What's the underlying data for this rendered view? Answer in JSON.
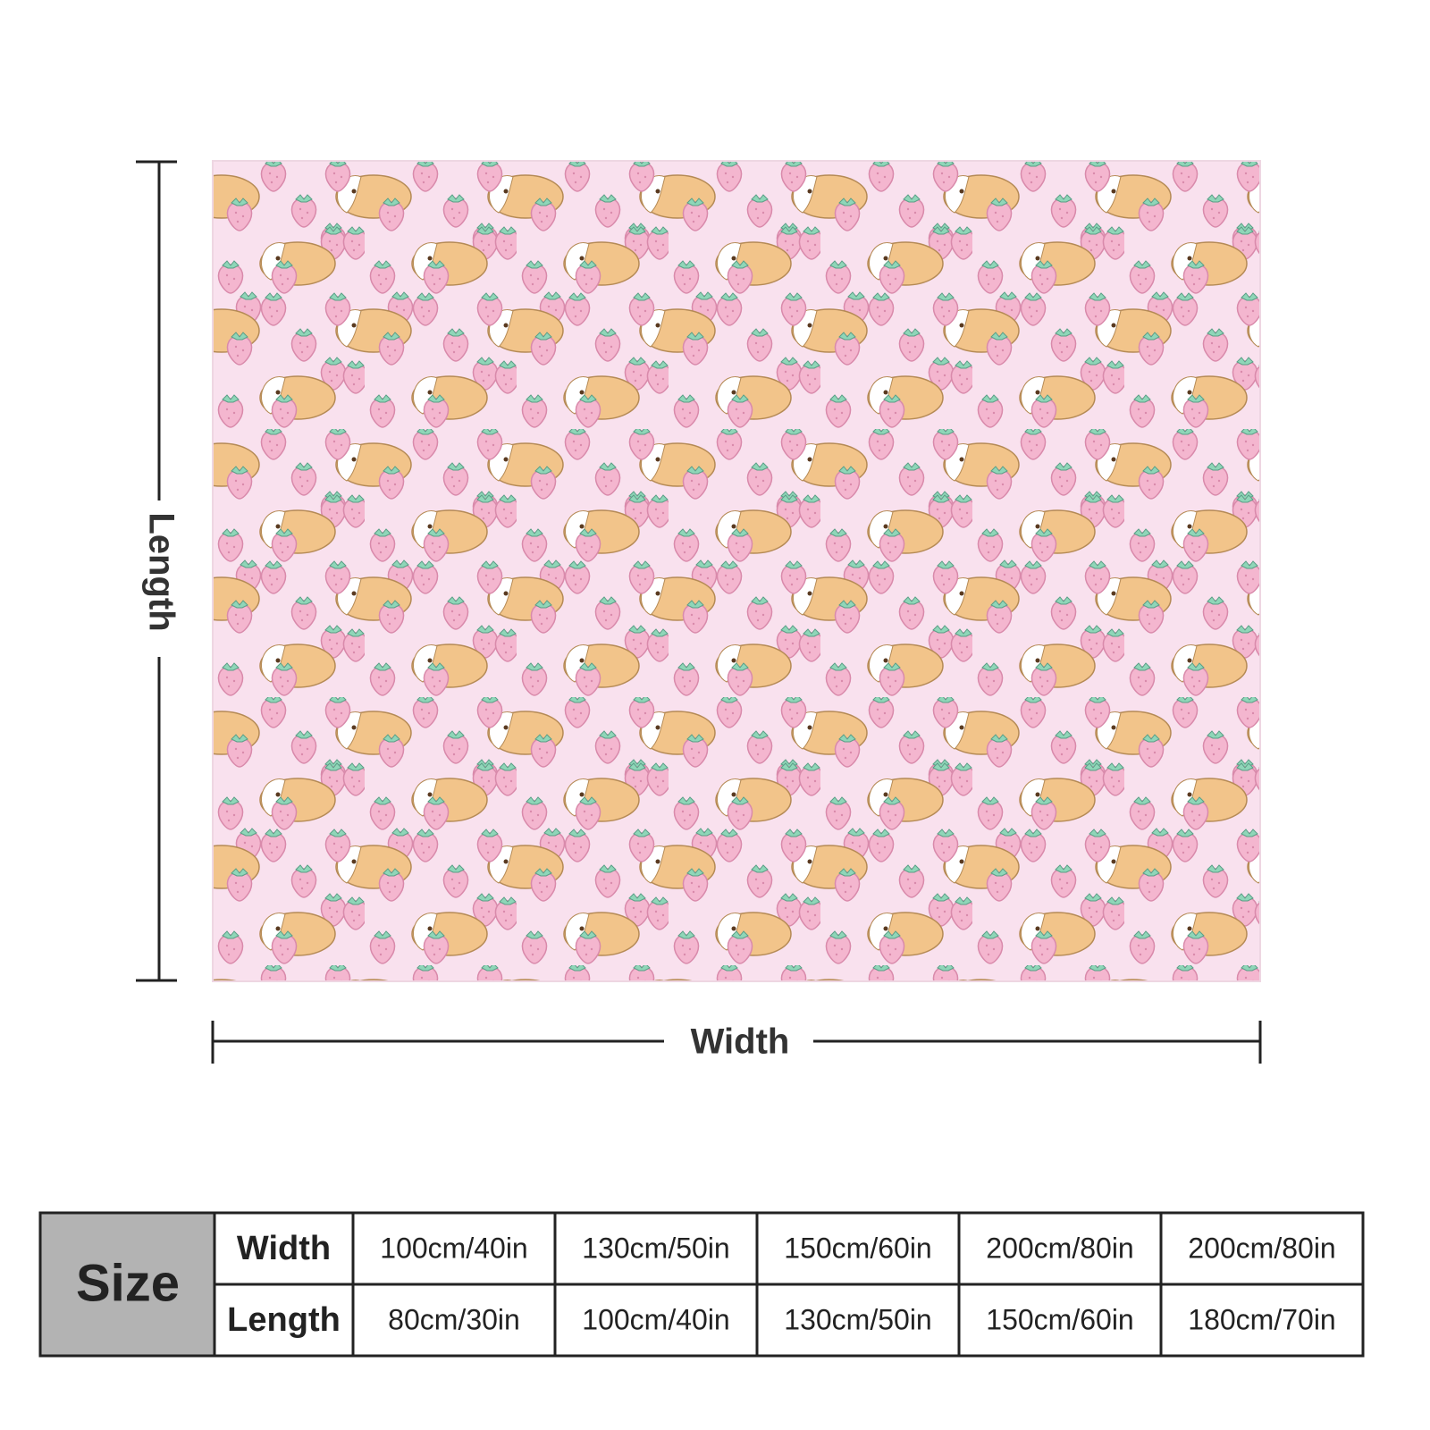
{
  "dimensions": {
    "length_label": "Length",
    "width_label": "Width"
  },
  "table": {
    "header": "Size",
    "rows": [
      [
        "Width",
        "100cm/40in",
        "130cm/50in",
        "150cm/60in",
        "200cm/80in",
        "200cm/80in"
      ],
      [
        "Length",
        "80cm/30in",
        "100cm/40in",
        "130cm/50in",
        "150cm/60in",
        "180cm/70in"
      ]
    ]
  }
}
